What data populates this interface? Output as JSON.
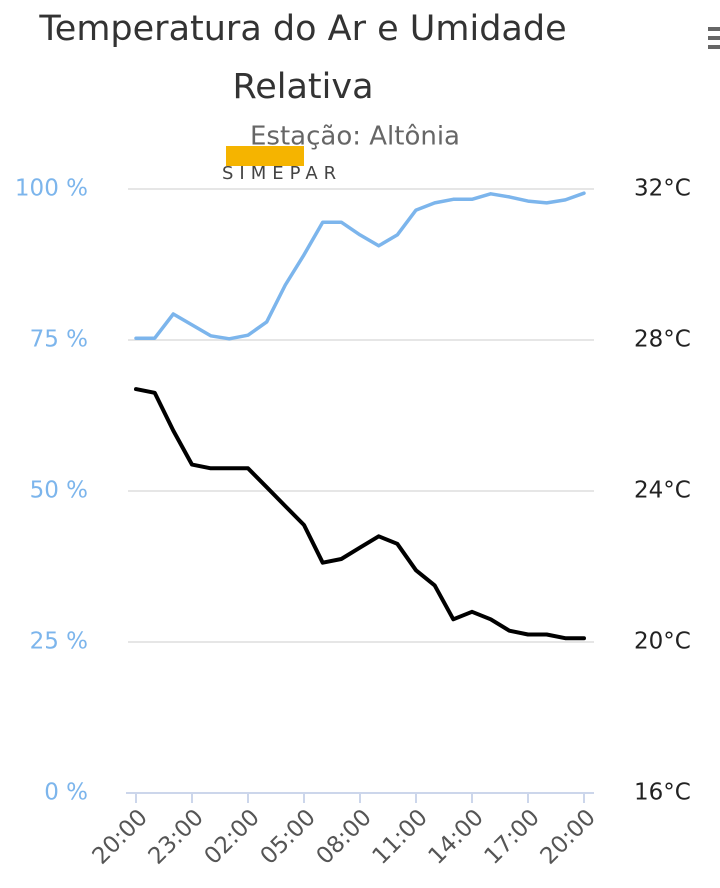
{
  "chart_data": {
    "type": "line",
    "title": "Temperatura do Ar e Umidade Relativa",
    "subtitle": "Estação: Altônia",
    "logo": "SIMEPAR",
    "categories": [
      "20:00",
      null,
      null,
      "23:00",
      null,
      null,
      "02:00",
      null,
      null,
      "05:00",
      null,
      null,
      "08:00",
      null,
      null,
      "11:00",
      null,
      null,
      "14:00",
      null,
      null,
      "17:00",
      null,
      null,
      "20:00"
    ],
    "series": [
      {
        "color": "#7cb5ec",
        "values": [
          75.3,
          75.3,
          79.3,
          77.5,
          75.7,
          75.2,
          75.8,
          78.0,
          84.1,
          89.1,
          94.5,
          94.5,
          92.4,
          90.6,
          92.4,
          96.5,
          97.7,
          98.3,
          98.3,
          99.2,
          98.7,
          98.0,
          97.7,
          98.2,
          99.3
        ]
      },
      {
        "color": "#000000",
        "axis": "y2",
        "values": [
          26.7,
          26.6,
          25.6,
          24.7,
          24.6,
          24.6,
          24.6,
          24.1,
          23.6,
          23.1,
          22.1,
          22.2,
          22.5,
          22.8,
          22.6,
          21.9,
          21.5,
          20.6,
          20.8,
          20.6,
          20.3,
          20.2,
          20.2,
          20.1,
          20.1
        ]
      }
    ],
    "ylim": [
      0,
      100
    ],
    "yticks": [
      {
        "value": 0,
        "label": "0 %"
      },
      {
        "value": 25,
        "label": "25 %"
      },
      {
        "value": 50,
        "label": "50 %"
      },
      {
        "value": 75,
        "label": "75 %"
      },
      {
        "value": 100,
        "label": "100 %"
      }
    ],
    "y2lim": [
      16,
      32
    ],
    "y2ticks": [
      {
        "value": 16,
        "label": "16°C"
      },
      {
        "value": 20,
        "label": "20°C"
      },
      {
        "value": 24,
        "label": "24°C"
      },
      {
        "value": 28,
        "label": "28°C"
      },
      {
        "value": 32,
        "label": "32°C"
      }
    ],
    "grid": true
  }
}
